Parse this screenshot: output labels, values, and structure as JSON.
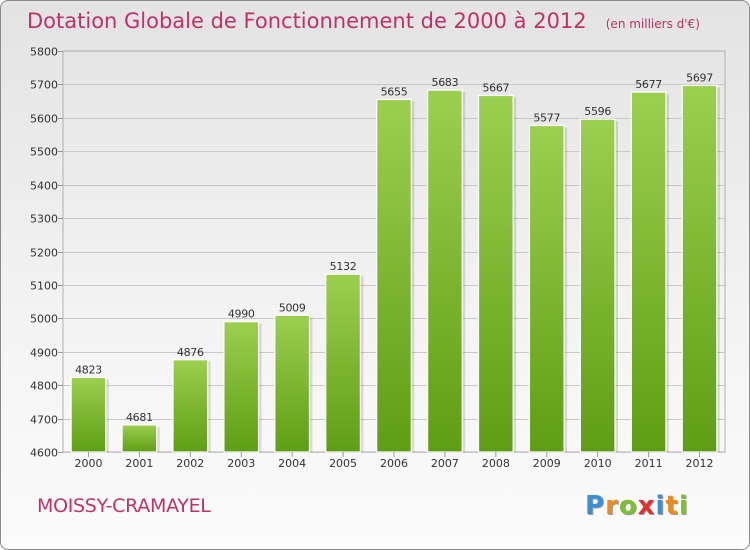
{
  "header": {
    "title": "Dotation Globale de Fonctionnement de 2000 à 2012",
    "unit_note": "(en milliers d'€)"
  },
  "footer": {
    "commune": "MOISSY-CRAMAYEL",
    "logo_letters": [
      {
        "char": "P",
        "color": "#3a8fd6"
      },
      {
        "char": "r",
        "color": "#ef8a1c"
      },
      {
        "char": "o",
        "color": "#7cc030"
      },
      {
        "char": "x",
        "color": "#e0302f"
      },
      {
        "char": "i",
        "color": "#3a8fd6"
      },
      {
        "char": "t",
        "color": "#ef8a1c"
      },
      {
        "char": "i",
        "color": "#7cc030"
      }
    ]
  },
  "colors": {
    "bar_top": "#9ccf4f",
    "bar_bottom": "#5e9e14",
    "grid": "#c8c8c8",
    "axis_text": "#333333",
    "title": "#c0306a"
  },
  "chart_data": {
    "type": "bar",
    "title": "Dotation Globale de Fonctionnement de 2000 à 2012",
    "categories": [
      "2000",
      "2001",
      "2002",
      "2003",
      "2004",
      "2005",
      "2006",
      "2007",
      "2008",
      "2009",
      "2010",
      "2011",
      "2012"
    ],
    "values": [
      4823,
      4681,
      4876,
      4990,
      5009,
      5132,
      5655,
      5683,
      5667,
      5577,
      5596,
      5677,
      5697
    ],
    "ylim": [
      4600,
      5800
    ],
    "yticks": [
      4600,
      4700,
      4800,
      4900,
      5000,
      5100,
      5200,
      5300,
      5400,
      5500,
      5600,
      5700,
      5800
    ],
    "grid": true,
    "data_labels": true
  }
}
